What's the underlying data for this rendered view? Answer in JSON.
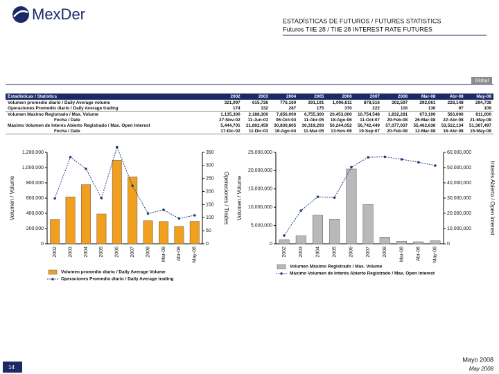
{
  "header": {
    "logo": "MexDer",
    "title": "ESTADÍSTICAS DE FUTUROS / FUTURES STATISTICS",
    "subtitle": "Futuros TIIE 28 / TIIE 28 INTEREST RATE FUTURES",
    "section": "Global"
  },
  "table": {
    "corner": "Estadísticas / Statistics",
    "columns": [
      "2002",
      "2003",
      "2004",
      "2005",
      "2006",
      "2007",
      "2008",
      "Mar-08",
      "Abr-08",
      "May-08"
    ],
    "rows": [
      {
        "label": "Volumen promedio diario / Daily Average volume",
        "cells": [
          "321,097",
          "615,726",
          "776,160",
          "391,191",
          "1,096,611",
          "878,516",
          "302,597",
          "292,061",
          "228,148",
          "294,738"
        ]
      },
      {
        "label": "Operaciones Promedio diario / Daily Average trading",
        "cells": [
          "174",
          "332",
          "287",
          "175",
          "370",
          "222",
          "116",
          "130",
          "97",
          "109"
        ]
      },
      {
        "label": "Volumen Maximo Registrado / Max. Volume",
        "cells": [
          "1,135,300",
          "2,188,300",
          "7,856,000",
          "6,755,300",
          "20,453,000",
          "10,754,548",
          "1,832,281",
          "673,100",
          "563,000",
          "811,000"
        ]
      },
      {
        "label": "Fecha / Date",
        "cells": [
          "27-Nov-02",
          "11-Jun-03",
          "06-Oct-04",
          "11-Abr-05",
          "18-Ago-06",
          "11-Oct-07",
          "29-Feb-08",
          "26-Mar-08",
          "22-Abr-08",
          "21-May-08"
        ]
      },
      {
        "label": "Máximo Volumen de Interés Abierto Registrado / Max. Open Interest",
        "cells": [
          "5,444,701",
          "21,802,459",
          "30,830,805",
          "30,319,293",
          "50,244,052",
          "56,742,449",
          "57,077,037",
          "55,462,636",
          "53,512,134",
          "51,367,497"
        ]
      },
      {
        "label": "Fecha / Date",
        "cells": [
          "17-Dic-02",
          "11-Dic-03",
          "16-Ago-04",
          "11-Mar-05",
          "13-Nov-06",
          "19-Sep-07",
          "20-Feb-08",
          "12-Mar-08",
          "16-Abr-08",
          "15-May-08"
        ]
      }
    ]
  },
  "charts": [
    {
      "type": "combo",
      "ylabel": "Volumen / Volume",
      "y2label": "Operaciones / Trades",
      "categories": [
        "2002",
        "2003",
        "2004",
        "2005",
        "2006",
        "2007",
        "2008",
        "Mar-08",
        "Abr-08",
        "May-08"
      ],
      "series": [
        {
          "name": "Volumen promedio diario / Daily Average Volume",
          "type": "bar",
          "color": "#f0a01e",
          "values": [
            321097,
            615726,
            776160,
            391191,
            1096611,
            878516,
            302597,
            292061,
            228148,
            294738
          ]
        },
        {
          "name": "Operaciones Promedio diario / Daily Average trading",
          "type": "line",
          "axis": "y2",
          "color": "#1f3a7a",
          "values": [
            174,
            332,
            287,
            175,
            370,
            222,
            116,
            130,
            97,
            109
          ]
        }
      ],
      "ylim": [
        0,
        1200000
      ],
      "yticks": [
        0,
        {
          "value": 200000,
          "label": "200,000"
        },
        {
          "value": 400000,
          "label": "400,000"
        },
        {
          "value": 600000,
          "label": "600,000"
        },
        {
          "value": 800000,
          "label": "800,000"
        },
        {
          "value": 1000000,
          "label": "1,000,000"
        },
        {
          "value": 1200000,
          "label": "1,200,000"
        }
      ],
      "y2lim": [
        0,
        350
      ],
      "y2ticks": [
        0,
        50,
        100,
        150,
        200,
        250,
        300,
        350
      ]
    },
    {
      "type": "combo",
      "ylabel": "Volumen / Volume",
      "y2label": "Interés Abierto / Open Interest",
      "categories": [
        "2002",
        "2003",
        "2004",
        "2005",
        "2006",
        "2007",
        "2008",
        "Mar-08",
        "Abr-08",
        "May-08"
      ],
      "series": [
        {
          "name": "Volumen Máximo Registrado / Max. Volume",
          "type": "bar",
          "color": "#b9b9b9",
          "values": [
            1135300,
            2188300,
            7856000,
            6755300,
            20453000,
            10754548,
            1832281,
            673100,
            563000,
            811000
          ]
        },
        {
          "name": "Máximo Volumen de Interés Abierto Registrado / Max. Open Interest",
          "type": "line",
          "axis": "y2",
          "color": "#1f3a7a",
          "values": [
            5444701,
            21802459,
            30830805,
            30319293,
            50244052,
            56742449,
            57077037,
            55462636,
            53512134,
            51367497
          ]
        }
      ],
      "ylim": [
        0,
        25000000
      ],
      "yticks": [
        0,
        {
          "value": 5000000,
          "label": "5,000,000"
        },
        {
          "value": 10000000,
          "label": "10,000,000"
        },
        {
          "value": 15000000,
          "label": "15,000,000"
        },
        {
          "value": 20000000,
          "label": "20,000,000"
        },
        {
          "value": 25000000,
          "label": "25,000,000"
        }
      ],
      "y2lim": [
        0,
        60000000
      ],
      "y2ticks": [
        0,
        {
          "value": 10000000,
          "label": "10,000,000"
        },
        {
          "value": 20000000,
          "label": "20,000,000"
        },
        {
          "value": 30000000,
          "label": "30,000,000"
        },
        {
          "value": 40000000,
          "label": "40,000,000"
        },
        {
          "value": 50000000,
          "label": "50,000,000"
        },
        {
          "value": 60000000,
          "label": "60,000,000"
        }
      ]
    }
  ],
  "footer": {
    "page": "14",
    "date_es": "Mayo 2008",
    "date_en": "May 2008"
  }
}
